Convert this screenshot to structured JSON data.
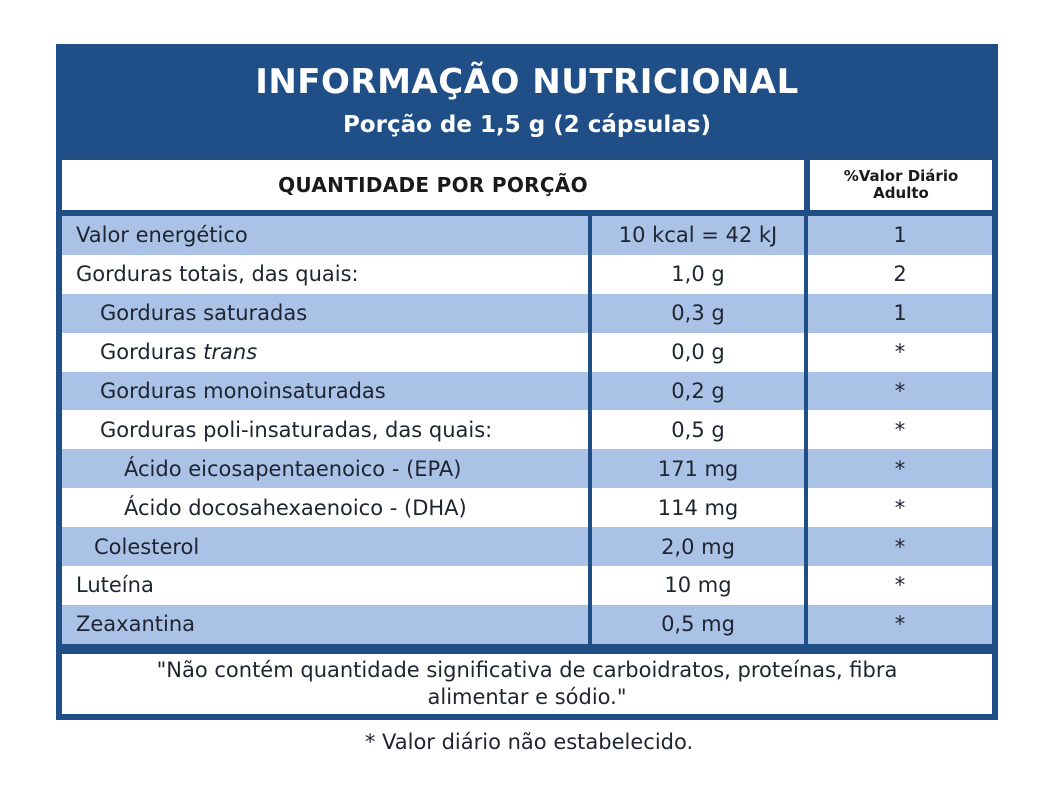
{
  "title": "INFORMAÇÃO NUTRICIONAL",
  "subtitle": "Porção de 1,5 g (2 cápsulas)",
  "header": {
    "quantity": "QUANTIDADE POR PORÇÃO",
    "dv_line1": "%Valor Diário",
    "dv_line2": "Adulto"
  },
  "rows": [
    {
      "name": "Valor energético",
      "amount": "10 kcal = 42 kJ",
      "dv": "1"
    },
    {
      "name": "Gorduras totais, das quais:",
      "amount": "1,0 g",
      "dv": "2"
    },
    {
      "name": "Gorduras saturadas",
      "amount": "0,3 g",
      "dv": "1"
    },
    {
      "name_prefix": "Gorduras ",
      "name_italic": "trans",
      "amount": "0,0 g",
      "dv": "*"
    },
    {
      "name": "Gorduras monoinsaturadas",
      "amount": "0,2 g",
      "dv": "*"
    },
    {
      "name": "Gorduras poli-insaturadas, das quais:",
      "amount": "0,5 g",
      "dv": "*"
    },
    {
      "name": "Ácido eicosapentaenoico - (EPA)",
      "amount": "171 mg",
      "dv": "*"
    },
    {
      "name": "Ácido docosahexaenoico - (DHA)",
      "amount": "114 mg",
      "dv": "*"
    },
    {
      "name": "Colesterol",
      "amount": "2,0 mg",
      "dv": "*"
    },
    {
      "name": "Luteína",
      "amount": "10 mg",
      "dv": "*"
    },
    {
      "name": "Zeaxantina",
      "amount": "0,5 mg",
      "dv": "*"
    }
  ],
  "note_line1": "\"Não contém quantidade significativa de carboidratos, proteínas, fibra",
  "note_line2": "alimentar e sódio.\"",
  "footer": "* Valor diário não estabelecido.",
  "colors": {
    "panel": "#1f4f86",
    "shaded_row": "#a9c2e6",
    "plain_row": "#ffffff"
  }
}
